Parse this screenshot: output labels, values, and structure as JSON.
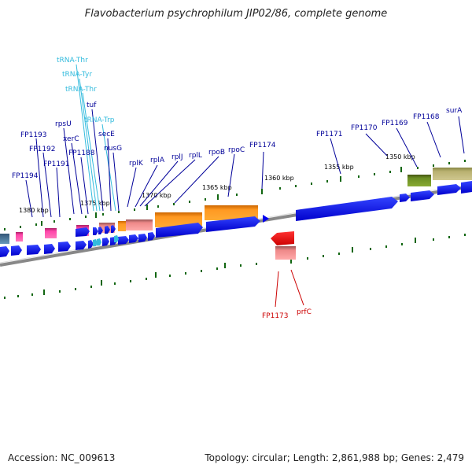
{
  "title": "Flavobacterium psychrophilum JIP02/86, complete genome",
  "footer": {
    "accession": "Accession: NC_009613",
    "summary": "Topology: circular; Length: 2,861,988 bp; Genes: 2,479"
  },
  "scale_labels": [
    "1380 kbp",
    "1375 kbp",
    "1370 kbp",
    "1365 kbp",
    "1360 kbp",
    "1355 kbp",
    "1350 kbp"
  ],
  "gene_labels_top": [
    "FP1194",
    "FP1193",
    "FP1192",
    "FP1191",
    "rpsU",
    "xerC",
    "FP1188",
    "tuf",
    "secE",
    "nusG",
    "rplK",
    "rplA",
    "rplJ",
    "rplL",
    "rpoB",
    "rpoC",
    "FP1174",
    "FP1171",
    "FP1170",
    "FP1169",
    "FP1168",
    "surA"
  ],
  "trna_labels": [
    "tRNA-Thr",
    "tRNA-Tyr",
    "tRNA-Thr",
    "tRNA-Trp"
  ],
  "gene_labels_bottom": [
    "FP1173",
    "prfC"
  ],
  "colors": {
    "blue_gene": "#0000dd",
    "orange_gene": "#ff9900",
    "red_gene": "#ee0000",
    "pink_gene": "#ff66aa",
    "salmon_gene": "#ee8888",
    "olive_gene": "#6b8e23",
    "khaki_gene": "#b8b070",
    "trna": "#33bbdd",
    "label_blue": "#000099",
    "label_red": "#cc0000",
    "tick_green": "#116611",
    "backbone_gray": "#888888"
  }
}
